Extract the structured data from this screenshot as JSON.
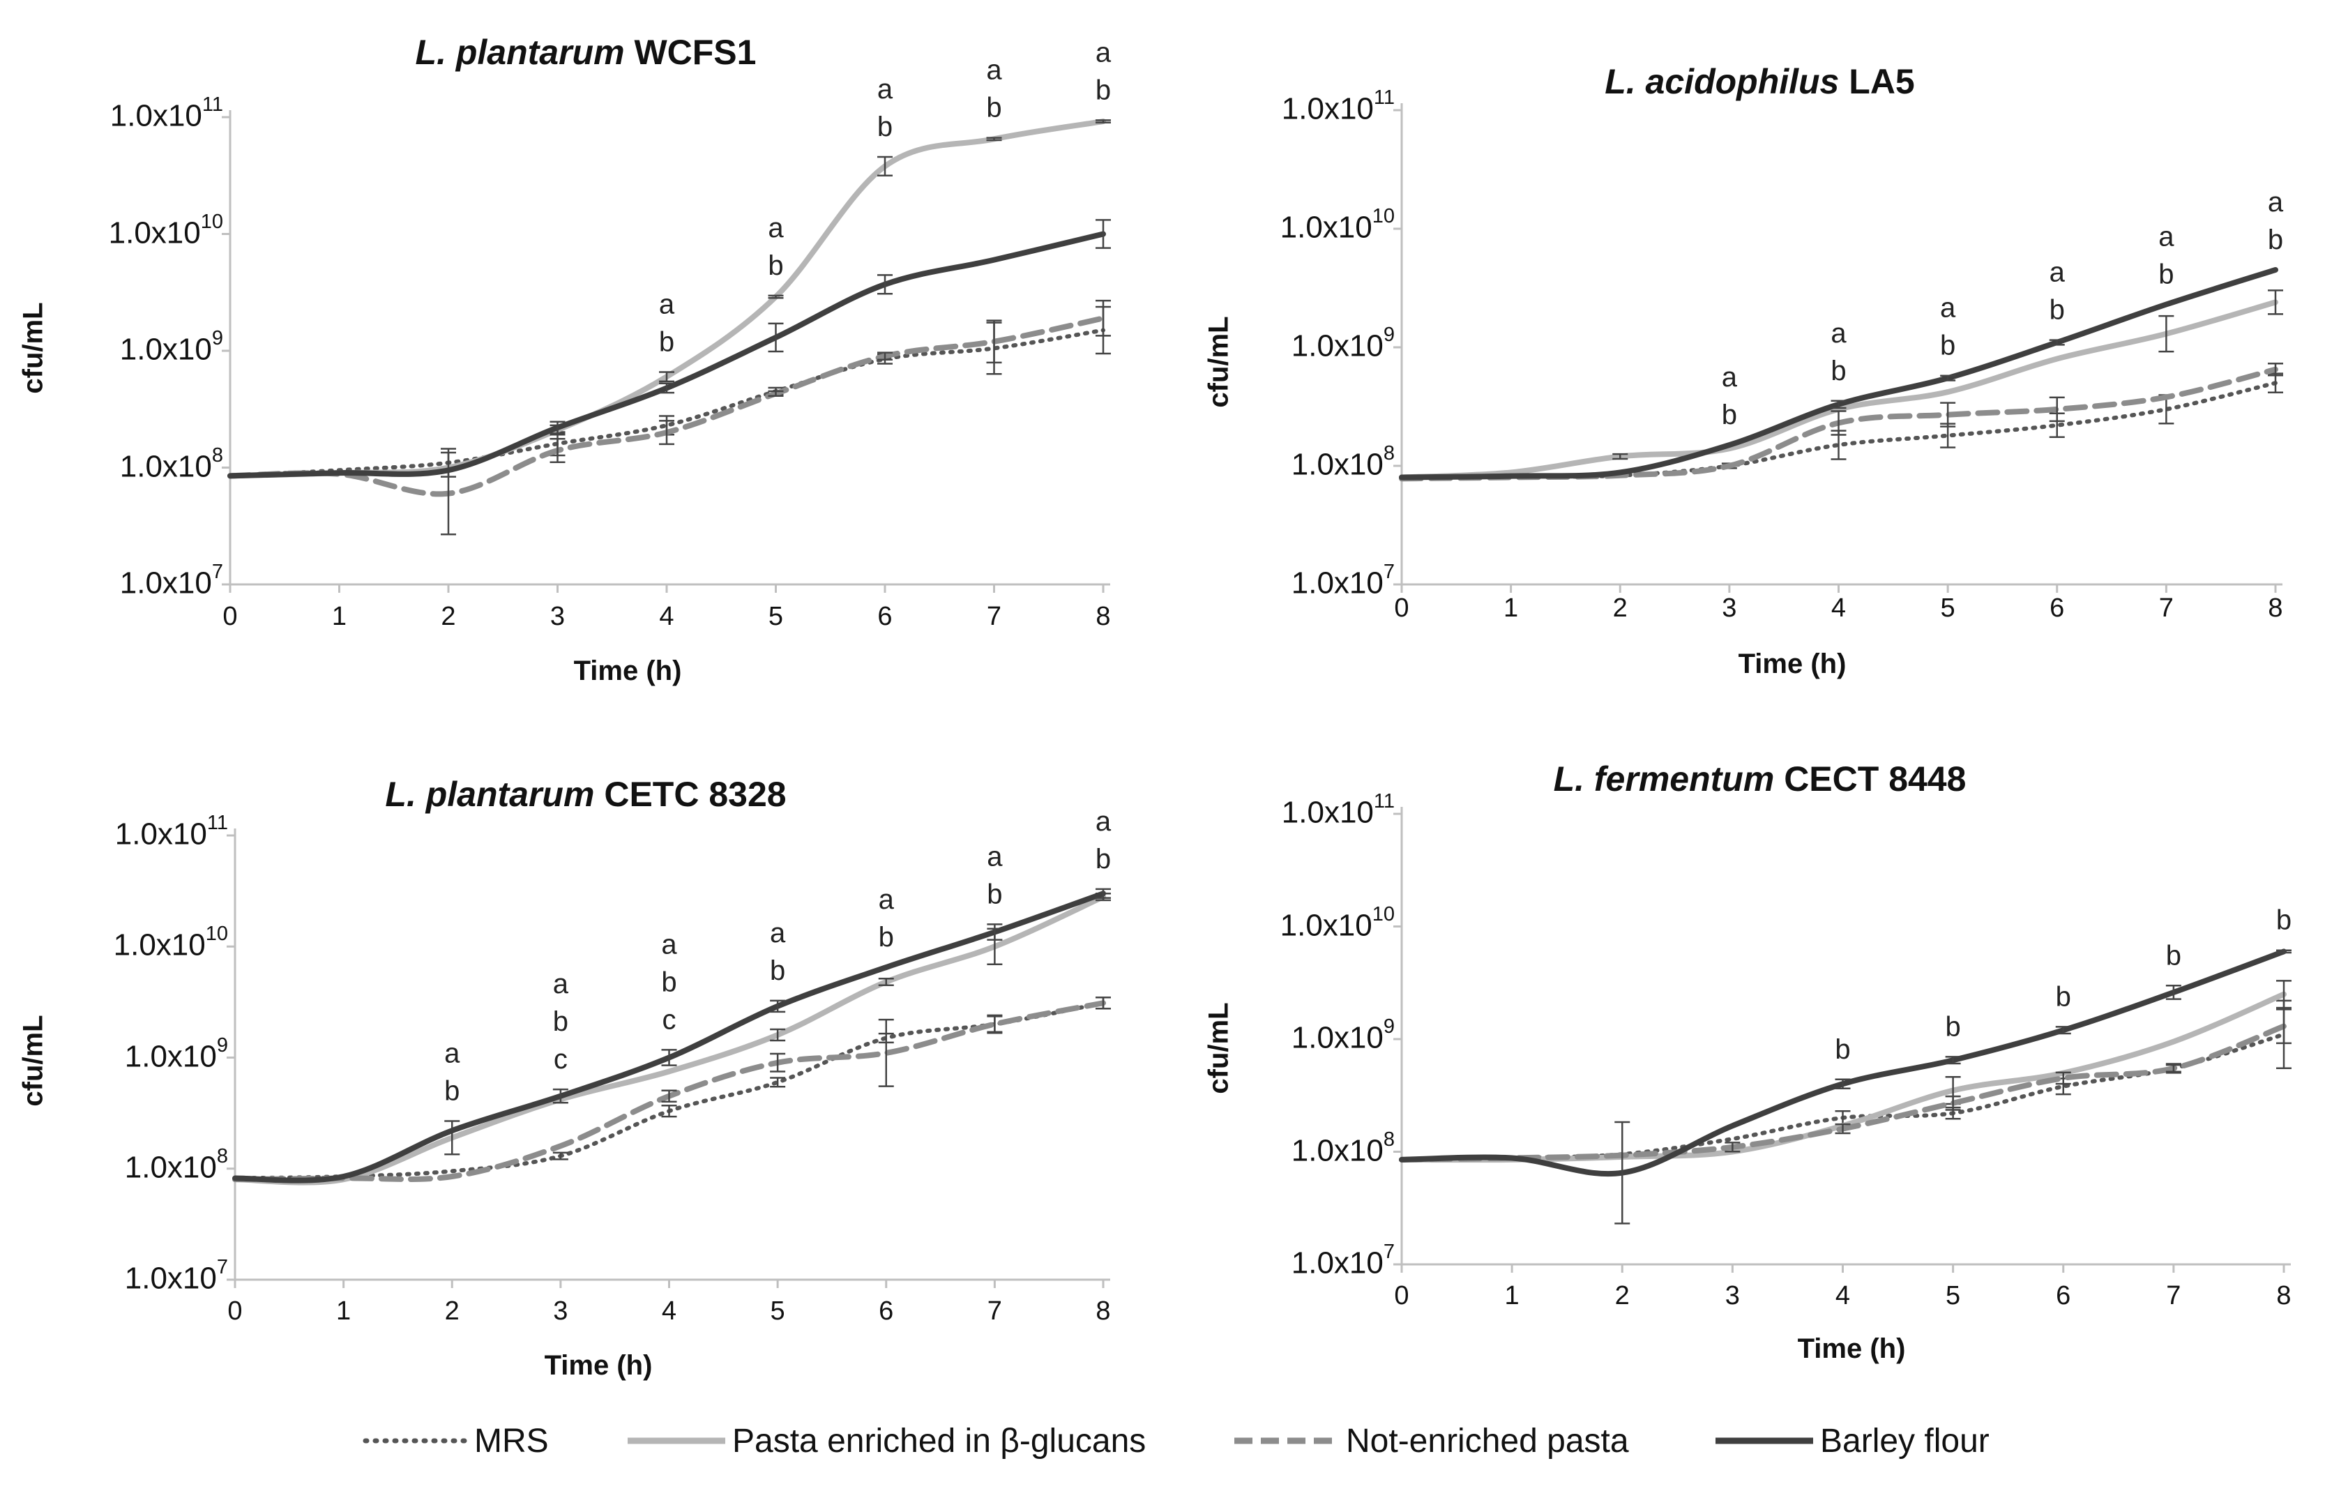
{
  "figure": {
    "y_axis_label": "cfu/mL",
    "x_axis_label": "Time (h)"
  },
  "series_styles": [
    {
      "name": "MRS",
      "color": "#555555",
      "dash": "dotted"
    },
    {
      "name": "Pasta enriched in β-glucans",
      "color": "#b5b5b5",
      "dash": "solid"
    },
    {
      "name": "Not-enriched pasta",
      "color": "#8c8c8c",
      "dash": "dashed"
    },
    {
      "name": "Barley flour",
      "color": "#3f3f3f",
      "dash": "solid"
    }
  ],
  "legend": {
    "items": [
      {
        "label": "MRS",
        "style": "dotted",
        "color": "#555555"
      },
      {
        "label": "Pasta enriched in β-glucans",
        "style": "solid",
        "color": "#b5b5b5"
      },
      {
        "label": "Not-enriched pasta",
        "style": "dashed",
        "color": "#8c8c8c"
      },
      {
        "label": "Barley flour",
        "style": "solid",
        "color": "#3f3f3f"
      }
    ]
  },
  "y_ticks": [
    {
      "log": 7,
      "mant": "1.0x10",
      "exp": "7"
    },
    {
      "log": 8,
      "mant": "1.0x10",
      "exp": "8"
    },
    {
      "log": 9,
      "mant": "1.0x10",
      "exp": "9"
    },
    {
      "log": 10,
      "mant": "1.0x10",
      "exp": "10"
    },
    {
      "log": 11,
      "mant": "1.0x10",
      "exp": "11"
    }
  ],
  "chart_data": [
    {
      "type": "line",
      "title_italic": "L. plantarum",
      "title_rest": "WCFS1",
      "xlabel": "Time (h)",
      "ylabel": "cfu/mL",
      "yscale": "log",
      "ylim": [
        10000000,
        100000000000
      ],
      "x": [
        0,
        1,
        2,
        3,
        4,
        5,
        6,
        7,
        8
      ],
      "xticks": [
        "0",
        "1",
        "2",
        "3",
        "4",
        "5",
        "6",
        "7",
        "8"
      ],
      "series": [
        {
          "name": "MRS",
          "values": [
            85000000.0,
            95000000.0,
            110000000.0,
            160000000.0,
            230000000.0,
            450000000.0,
            850000000.0,
            1050000000.0,
            1500000000.0
          ],
          "errors": [
            null,
            null,
            0.12,
            0.1,
            0.08,
            0.03,
            0.04,
            0.22,
            0.2
          ]
        },
        {
          "name": "Pasta enriched in β-glucans",
          "values": [
            85000000.0,
            90000000.0,
            100000000.0,
            210000000.0,
            600000000.0,
            2900000000.0,
            38000000000.0,
            65000000000.0,
            92000000000.0
          ],
          "errors": [
            null,
            null,
            null,
            0.04,
            0.04,
            0.01,
            0.08,
            0.01,
            0.01
          ]
        },
        {
          "name": "Not-enriched pasta",
          "values": [
            85000000.0,
            88000000.0,
            60000000.0,
            140000000.0,
            200000000.0,
            430000000.0,
            900000000.0,
            1200000000.0,
            1900000000.0
          ],
          "errors": [
            null,
            null,
            0.35,
            0.1,
            0.1,
            0.02,
            0.03,
            0.18,
            0.15
          ]
        },
        {
          "name": "Barley flour",
          "values": [
            85000000.0,
            90000000.0,
            95000000.0,
            220000000.0,
            480000000.0,
            1300000000.0,
            3700000000.0,
            6000000000.0,
            10000000000.0
          ],
          "errors": [
            null,
            null,
            null,
            0.05,
            0.04,
            0.12,
            0.08,
            null,
            0.12
          ]
        }
      ],
      "annotations": [
        {
          "x": 4,
          "letters": [
            "a",
            "b"
          ]
        },
        {
          "x": 5,
          "letters": [
            "a",
            "b"
          ]
        },
        {
          "x": 6,
          "letters": [
            "a",
            "b"
          ]
        },
        {
          "x": 7,
          "letters": [
            "a",
            "b"
          ]
        },
        {
          "x": 8,
          "letters": [
            "a",
            "b"
          ]
        }
      ]
    },
    {
      "type": "line",
      "title_italic": "L. acidophilus",
      "title_rest": "LA5",
      "xlabel": "Time (h)",
      "ylabel": "cfu/mL",
      "yscale": "log",
      "ylim": [
        10000000,
        100000000000
      ],
      "x": [
        0,
        1,
        2,
        3,
        4,
        5,
        6,
        7,
        8
      ],
      "xticks": [
        "0",
        "1",
        "2",
        "3",
        "4",
        "5",
        "6",
        "7",
        "8"
      ],
      "series": [
        {
          "name": "MRS",
          "values": [
            80000000.0,
            81000000.0,
            83000000.0,
            100000000.0,
            150000000.0,
            180000000.0,
            220000000.0,
            300000000.0,
            500000000.0
          ],
          "errors": [
            null,
            null,
            null,
            0.02,
            0.12,
            0.1,
            0.1,
            0.12,
            0.08
          ]
        },
        {
          "name": "Pasta enriched in β-glucans",
          "values": [
            80000000.0,
            88000000.0,
            120000000.0,
            140000000.0,
            300000000.0,
            420000000.0,
            800000000.0,
            1300000000.0,
            2400000000.0
          ],
          "errors": [
            null,
            null,
            0.02,
            null,
            null,
            null,
            null,
            0.15,
            0.1
          ]
        },
        {
          "name": "Not-enriched pasta",
          "values": [
            78000000.0,
            80000000.0,
            83000000.0,
            100000000.0,
            230000000.0,
            270000000.0,
            300000000.0,
            380000000.0,
            650000000.0
          ],
          "errors": [
            null,
            null,
            null,
            null,
            0.1,
            0.1,
            0.1,
            null,
            0.05
          ]
        },
        {
          "name": "Barley flour",
          "values": [
            80000000.0,
            82000000.0,
            88000000.0,
            150000000.0,
            330000000.0,
            550000000.0,
            1100000000.0,
            2300000000.0,
            4500000000.0
          ],
          "errors": [
            null,
            null,
            null,
            null,
            0.03,
            0.02,
            0.02,
            null,
            null
          ]
        }
      ],
      "annotations": [
        {
          "x": 3,
          "letters": [
            "a",
            "b"
          ]
        },
        {
          "x": 4,
          "letters": [
            "a",
            "b"
          ]
        },
        {
          "x": 5,
          "letters": [
            "a",
            "b"
          ]
        },
        {
          "x": 6,
          "letters": [
            "a",
            "b"
          ]
        },
        {
          "x": 7,
          "letters": [
            "a",
            "b"
          ]
        },
        {
          "x": 8,
          "letters": [
            "a",
            "b"
          ]
        }
      ]
    },
    {
      "type": "line",
      "title_italic": "L. plantarum",
      "title_rest": "CETC 8328",
      "xlabel": "Time (h)",
      "ylabel": "cfu/mL",
      "yscale": "log",
      "ylim": [
        10000000,
        100000000000
      ],
      "x": [
        0,
        1,
        2,
        3,
        4,
        5,
        6,
        7,
        8
      ],
      "xticks": [
        "0",
        "1",
        "2",
        "3",
        "4",
        "5",
        "6",
        "7",
        "8"
      ],
      "series": [
        {
          "name": "MRS",
          "values": [
            82000000.0,
            85000000.0,
            95000000.0,
            130000000.0,
            330000000.0,
            600000000.0,
            1500000000.0,
            2000000000.0,
            3100000000.0
          ],
          "errors": [
            null,
            null,
            null,
            0.03,
            0.05,
            0.04,
            0.04,
            0.08,
            0.05
          ]
        },
        {
          "name": "Pasta enriched in β-glucans",
          "values": [
            80000000.0,
            80000000.0,
            190000000.0,
            420000000.0,
            750000000.0,
            1600000000.0,
            4800000000.0,
            10000000000.0,
            28000000000.0
          ],
          "errors": [
            null,
            null,
            0.15,
            null,
            null,
            0.05,
            0.03,
            0.16,
            0.03
          ]
        },
        {
          "name": "Not-enriched pasta",
          "values": [
            80000000.0,
            82000000.0,
            85000000.0,
            160000000.0,
            450000000.0,
            900000000.0,
            1100000000.0,
            2000000000.0,
            3100000000.0
          ],
          "errors": [
            null,
            null,
            null,
            null,
            0.05,
            0.08,
            0.3,
            0.07,
            0.05
          ]
        },
        {
          "name": "Barley flour",
          "values": [
            82000000.0,
            85000000.0,
            220000000.0,
            450000000.0,
            1000000000.0,
            2900000000.0,
            6500000000.0,
            13500000000.0,
            30000000000.0
          ],
          "errors": [
            null,
            null,
            null,
            0.06,
            0.07,
            0.05,
            null,
            0.07,
            0.04
          ]
        }
      ],
      "annotations": [
        {
          "x": 2,
          "letters": [
            "a",
            "b"
          ]
        },
        {
          "x": 3,
          "letters": [
            "a",
            "b",
            "c"
          ]
        },
        {
          "x": 4,
          "letters": [
            "a",
            "b",
            "c"
          ]
        },
        {
          "x": 5,
          "letters": [
            "a",
            "b"
          ]
        },
        {
          "x": 6,
          "letters": [
            "a",
            "b"
          ]
        },
        {
          "x": 7,
          "letters": [
            "a",
            "b"
          ]
        },
        {
          "x": 8,
          "letters": [
            "a",
            "b"
          ]
        }
      ]
    },
    {
      "type": "line",
      "title_italic": "L. fermentum",
      "title_rest": "CECT 8448",
      "xlabel": "Time (h)",
      "ylabel": "cfu/mL",
      "yscale": "log",
      "ylim": [
        10000000,
        100000000000
      ],
      "x": [
        0,
        1,
        2,
        3,
        4,
        5,
        6,
        7,
        8
      ],
      "xticks": [
        "0",
        "1",
        "2",
        "3",
        "4",
        "5",
        "6",
        "7",
        "8"
      ],
      "series": [
        {
          "name": "MRS",
          "values": [
            85000000.0,
            88000000.0,
            95000000.0,
            130000000.0,
            200000000.0,
            220000000.0,
            380000000.0,
            550000000.0,
            1100000000.0
          ],
          "errors": [
            null,
            null,
            null,
            null,
            0.06,
            0.05,
            0.07,
            0.04,
            0.3
          ]
        },
        {
          "name": "Pasta enriched in β-glucans",
          "values": [
            85000000.0,
            85000000.0,
            90000000.0,
            100000000.0,
            170000000.0,
            350000000.0,
            500000000.0,
            950000000.0,
            2500000000.0
          ],
          "errors": [
            null,
            null,
            null,
            null,
            null,
            0.12,
            null,
            null,
            0.12
          ]
        },
        {
          "name": "Not-enriched pasta",
          "values": [
            85000000.0,
            88000000.0,
            93000000.0,
            110000000.0,
            160000000.0,
            270000000.0,
            450000000.0,
            550000000.0,
            1300000000.0
          ],
          "errors": [
            null,
            null,
            null,
            0.04,
            0.04,
            0.06,
            0.05,
            0.03,
            0.15
          ]
        },
        {
          "name": "Barley flour",
          "values": [
            85000000.0,
            88000000.0,
            65000000.0,
            170000000.0,
            400000000.0,
            650000000.0,
            1200000000.0,
            2600000000.0,
            6000000000.0
          ],
          "errors": [
            null,
            null,
            0.45,
            null,
            0.04,
            0.03,
            0.03,
            0.06,
            0.01
          ]
        }
      ],
      "annotations": [
        {
          "x": 4,
          "letters": [
            "b"
          ]
        },
        {
          "x": 5,
          "letters": [
            "b"
          ]
        },
        {
          "x": 6,
          "letters": [
            "b"
          ]
        },
        {
          "x": 7,
          "letters": [
            "b"
          ]
        },
        {
          "x": 8,
          "letters": [
            "b"
          ]
        }
      ]
    }
  ]
}
